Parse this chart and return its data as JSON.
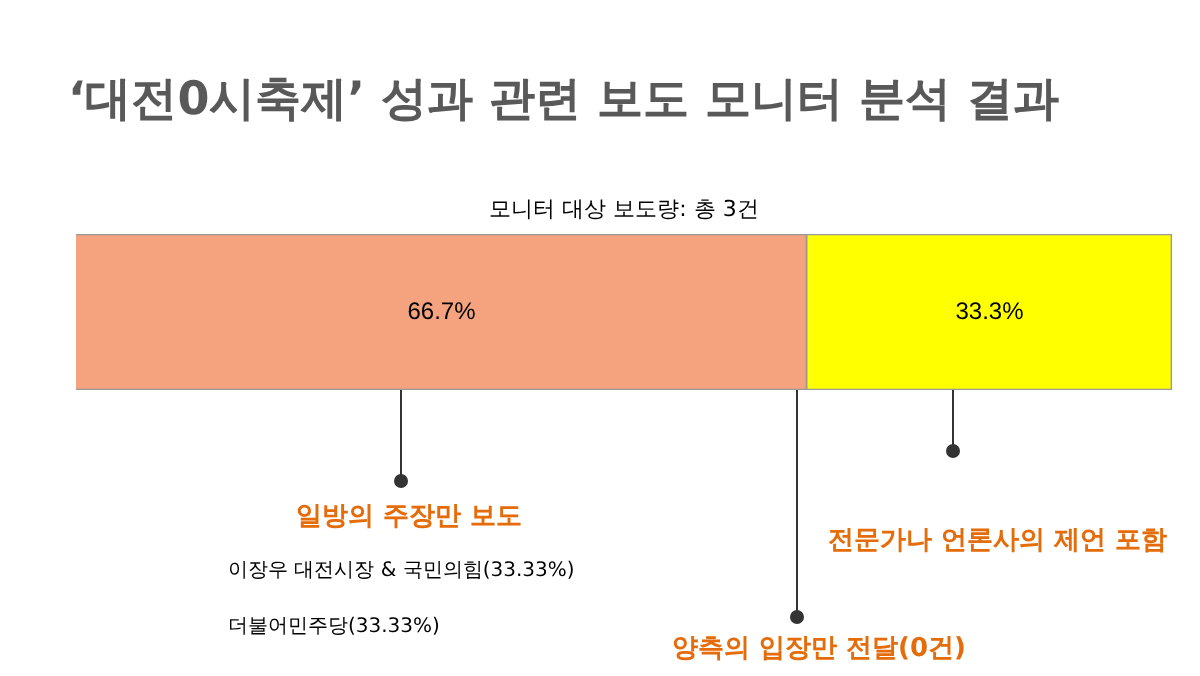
{
  "chart_data": {
    "type": "bar",
    "orientation": "horizontal",
    "stacked": true,
    "title": "‘대전0시축제’ 성과 관련 보도 모니터 분석 결과",
    "subtitle": "모니터 대상 보도량: 총 3건",
    "categories": [
      null
    ],
    "series": [
      {
        "color": "#f5a37f",
        "values": [
          66.7
        ],
        "value_labels": [
          "66.7%"
        ]
      },
      {
        "color": "#ffff00",
        "values": [
          33.3
        ],
        "value_labels": [
          "33.3%"
        ]
      }
    ],
    "annotations": [
      "일방의 주장만 보도",
      "이장우 대전시장 & 국민의힘(33.33%)",
      "더불어민주당(33.33%)",
      "양측의 입장만 전달(0건)",
      "전문가나 언론사의 제언 포함"
    ],
    "legend": false
  }
}
